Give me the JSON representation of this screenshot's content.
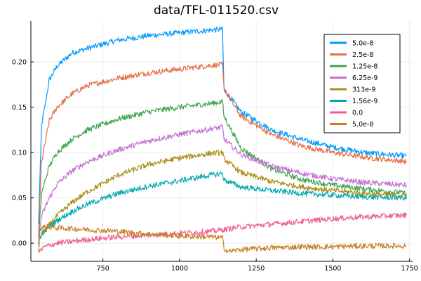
{
  "chart_data": {
    "type": "line",
    "title": "data/TFL-011520.csv",
    "xlabel": "",
    "ylabel": "",
    "xlim": [
      515,
      1760
    ],
    "ylim": [
      -0.02,
      0.245
    ],
    "x_ticks": [
      750,
      1000,
      1250,
      1500,
      1750
    ],
    "x_tick_labels": [
      "750",
      "1000",
      "1250",
      "1500",
      "1750"
    ],
    "y_ticks": [
      0.0,
      0.05,
      0.1,
      0.15,
      0.2
    ],
    "y_tick_labels": [
      "0.00",
      "0.05",
      "0.10",
      "0.15",
      "0.20"
    ],
    "grid": true,
    "legend_position": "top-right",
    "series": [
      {
        "name": "5.0e-8",
        "color": "#009AFA",
        "x": [
          540,
          550,
          575,
          600,
          650,
          700,
          800,
          900,
          1000,
          1100,
          1140,
          1145,
          1200,
          1300,
          1400,
          1500,
          1600,
          1740
        ],
        "y": [
          0.02,
          0.13,
          0.18,
          0.195,
          0.21,
          0.215,
          0.224,
          0.229,
          0.232,
          0.235,
          0.236,
          0.17,
          0.145,
          0.125,
          0.114,
          0.106,
          0.1,
          0.096
        ]
      },
      {
        "name": "2.5e-8",
        "color": "#E36F47",
        "x": [
          540,
          550,
          575,
          600,
          650,
          700,
          800,
          900,
          1000,
          1100,
          1140,
          1145,
          1200,
          1300,
          1400,
          1500,
          1600,
          1740
        ],
        "y": [
          0.01,
          0.09,
          0.135,
          0.15,
          0.165,
          0.174,
          0.182,
          0.188,
          0.192,
          0.196,
          0.197,
          0.17,
          0.14,
          0.12,
          0.107,
          0.1,
          0.095,
          0.09
        ]
      },
      {
        "name": "1.25e-8",
        "color": "#3EA44E",
        "x": [
          540,
          550,
          575,
          600,
          650,
          700,
          800,
          900,
          1000,
          1100,
          1140,
          1145,
          1200,
          1300,
          1400,
          1500,
          1600,
          1740
        ],
        "y": [
          0.005,
          0.055,
          0.085,
          0.1,
          0.115,
          0.125,
          0.137,
          0.145,
          0.15,
          0.154,
          0.156,
          0.14,
          0.105,
          0.082,
          0.07,
          0.064,
          0.06,
          0.055
        ]
      },
      {
        "name": "6.25e-9",
        "color": "#C371D2",
        "x": [
          540,
          550,
          575,
          600,
          650,
          700,
          800,
          900,
          1000,
          1100,
          1140,
          1145,
          1200,
          1300,
          1400,
          1500,
          1600,
          1740
        ],
        "y": [
          0.005,
          0.03,
          0.05,
          0.065,
          0.08,
          0.09,
          0.103,
          0.113,
          0.12,
          0.126,
          0.128,
          0.115,
          0.098,
          0.085,
          0.077,
          0.071,
          0.067,
          0.064
        ]
      },
      {
        "name": "313e-9",
        "color": "#AC8D18",
        "x": [
          540,
          550,
          575,
          600,
          650,
          700,
          800,
          900,
          1000,
          1100,
          1140,
          1145,
          1200,
          1300,
          1400,
          1500,
          1600,
          1740
        ],
        "y": [
          0.0,
          0.01,
          0.02,
          0.03,
          0.045,
          0.057,
          0.075,
          0.087,
          0.094,
          0.099,
          0.1,
          0.093,
          0.078,
          0.068,
          0.062,
          0.058,
          0.055,
          0.052
        ]
      },
      {
        "name": "1.56e-9",
        "color": "#00A9AD",
        "x": [
          540,
          550,
          575,
          600,
          650,
          700,
          800,
          900,
          1000,
          1100,
          1140,
          1145,
          1200,
          1300,
          1400,
          1500,
          1600,
          1740
        ],
        "y": [
          0.0,
          0.01,
          0.018,
          0.025,
          0.035,
          0.043,
          0.055,
          0.063,
          0.069,
          0.075,
          0.077,
          0.07,
          0.062,
          0.058,
          0.055,
          0.053,
          0.051,
          0.05
        ]
      },
      {
        "name": "0.0",
        "color": "#ED5D92",
        "x": [
          540,
          560,
          600,
          700,
          800,
          900,
          1000,
          1100,
          1145,
          1200,
          1300,
          1400,
          1500,
          1600,
          1740
        ],
        "y": [
          -0.01,
          -0.004,
          0.0,
          0.004,
          0.007,
          0.009,
          0.011,
          0.013,
          0.015,
          0.018,
          0.021,
          0.024,
          0.027,
          0.029,
          0.031
        ]
      },
      {
        "name": "5.0e-8",
        "color": "#C68125",
        "x": [
          540,
          545,
          560,
          600,
          700,
          800,
          900,
          1000,
          1100,
          1140,
          1145,
          1160,
          1200,
          1300,
          1400,
          1500,
          1600,
          1740
        ],
        "y": [
          -0.01,
          0.016,
          0.018,
          0.017,
          0.015,
          0.013,
          0.01,
          0.008,
          0.007,
          0.006,
          -0.006,
          -0.009,
          -0.007,
          -0.005,
          -0.004,
          -0.004,
          -0.003,
          -0.003
        ]
      }
    ]
  }
}
